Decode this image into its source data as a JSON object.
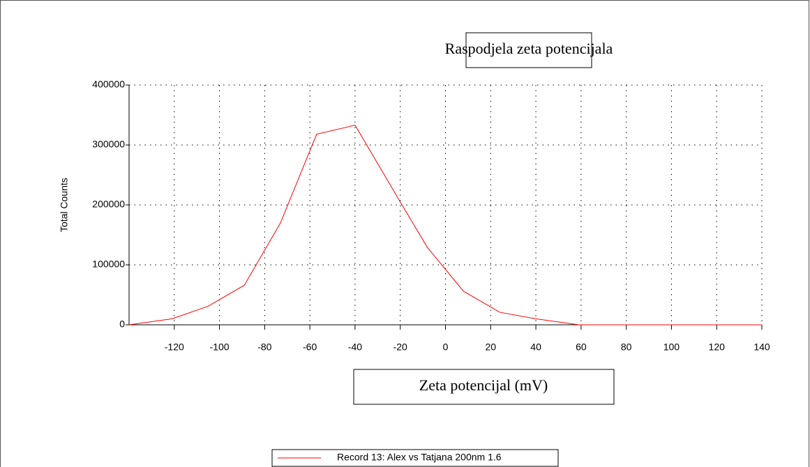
{
  "chart_data": {
    "type": "line",
    "title": "Raspodjela zeta potencijala",
    "xlabel": "Zeta potencijal (mV)",
    "ylabel": "Total Counts",
    "xlim": [
      -140,
      140
    ],
    "ylim": [
      0,
      400000
    ],
    "xticks": [
      -120,
      -100,
      -80,
      -60,
      -40,
      -20,
      0,
      20,
      40,
      60,
      80,
      100,
      120,
      140
    ],
    "yticks": [
      0,
      100000,
      200000,
      300000,
      400000
    ],
    "grid": true,
    "x": [
      -140,
      -121,
      -105,
      -89,
      -73,
      -57,
      -40,
      -20,
      -8,
      8,
      24,
      40,
      59,
      140
    ],
    "series": [
      {
        "name": "Record 13: Alex vs Tatjana 200nm 1.6",
        "color": "#ff0000",
        "values": [
          0,
          10000,
          31000,
          66000,
          170000,
          318000,
          333000,
          205000,
          129000,
          56000,
          21000,
          10000,
          0,
          0
        ]
      }
    ]
  }
}
